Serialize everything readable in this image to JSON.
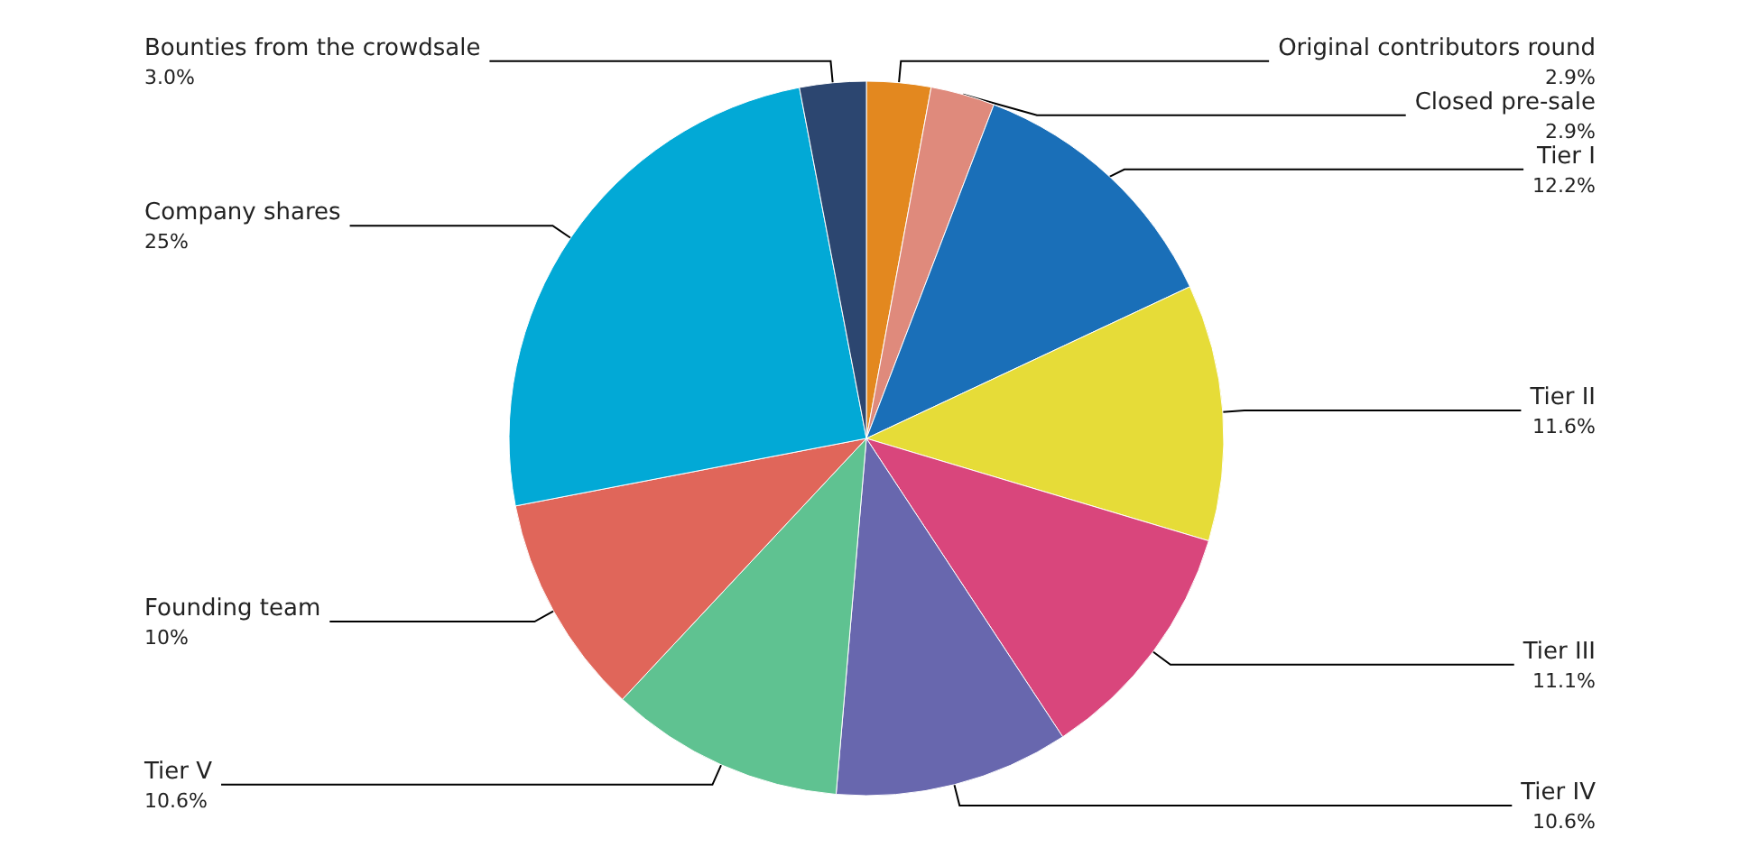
{
  "chart_data": {
    "type": "pie",
    "categories": [
      "Original contributors round",
      "Closed pre-sale",
      "Tier I",
      "Tier II",
      "Tier III",
      "Tier IV",
      "Tier V",
      "Founding team",
      "Company shares",
      "Bounties from the crowdsale"
    ],
    "values": [
      2.9,
      2.9,
      12.2,
      11.6,
      11.1,
      10.6,
      10.6,
      10,
      25,
      3.0
    ],
    "value_labels": [
      "2.9%",
      "2.9%",
      "12.2%",
      "11.6%",
      "11.1%",
      "10.6%",
      "10.6%",
      "10%",
      "25%",
      "3.0%"
    ],
    "colors": [
      "#e3881f",
      "#df8a7c",
      "#1a6fb8",
      "#e6dc38",
      "#d9467c",
      "#6867ae",
      "#5fc291",
      "#e0665a",
      "#02a9d6",
      "#2c4670"
    ],
    "legend": false
  }
}
